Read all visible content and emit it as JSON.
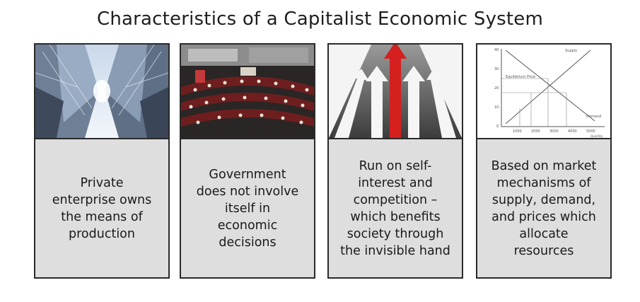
{
  "title": "Characteristics of a Capitalist Economic System",
  "cards": [
    {
      "image_icon": "skyscrapers-photo",
      "caption": "Private\nenterprise owns\nthe means of\nproduction"
    },
    {
      "image_icon": "parliament-chamber-photo",
      "caption": "Government\ndoes not involve\nitself in\neconomic\ndecisions"
    },
    {
      "image_icon": "road-arrows-photo",
      "caption": "Run on self-\ninterest and\ncompetition –\nwhich benefits\nsociety through\nthe invisible hand"
    },
    {
      "image_icon": "supply-demand-graph",
      "caption": "Based on market\nmechanisms of\nsupply, demand,\nand prices which\nallocate\nresources"
    }
  ],
  "graph": {
    "y_ticks": [
      "40",
      "30",
      "20",
      "10",
      "0"
    ],
    "x_ticks": [
      "1000",
      "2000",
      "3000",
      "4000",
      "5000"
    ],
    "supply_label": "Supply",
    "demand_label": "Demand",
    "eq_label": "Equilibrium Price",
    "x_axis_label": "Quantity"
  },
  "colors": {
    "accent_red": "#d4201f",
    "card_bg": "#dedede",
    "border": "#2a2a2a"
  }
}
